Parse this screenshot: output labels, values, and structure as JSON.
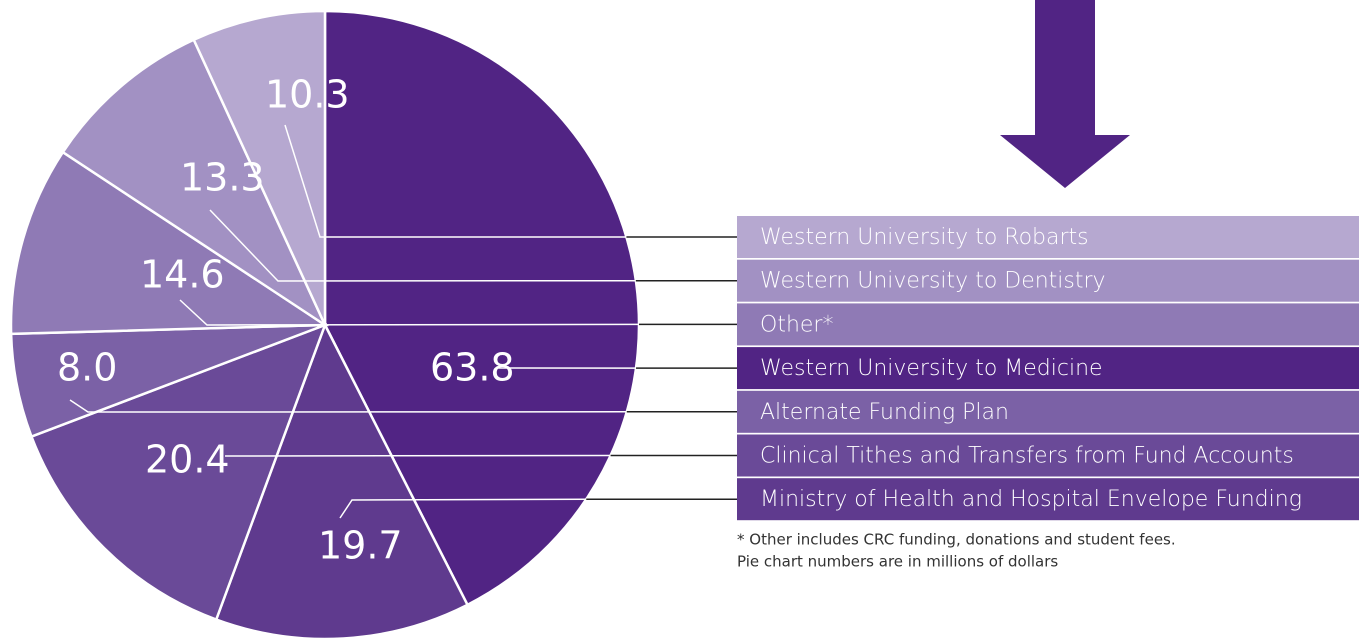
{
  "chart_data": {
    "type": "pie",
    "categories": [
      "Western University to Medicine",
      "Ministry of Health and Hospital Envelope Funding",
      "Clinical Tithes and Transfers from Fund Accounts",
      "Alternate Funding Plan",
      "Other*",
      "Western University to Dentistry",
      "Western University to Robarts"
    ],
    "values": [
      63.8,
      19.7,
      20.4,
      8.0,
      14.6,
      13.3,
      10.3
    ],
    "value_labels": [
      "63.8",
      "19.7",
      "20.4",
      "8.0",
      "14.6",
      "13.3",
      "10.3"
    ],
    "colors": [
      "#512484",
      "#5f3a8e",
      "#6a4a98",
      "#7b61a6",
      "#8f7ab5",
      "#a291c3",
      "#b6a8d0"
    ],
    "footnotes": [
      "* Other includes CRC funding, donations and student fees.",
      "Pie chart numbers are in millions of dollars"
    ]
  }
}
